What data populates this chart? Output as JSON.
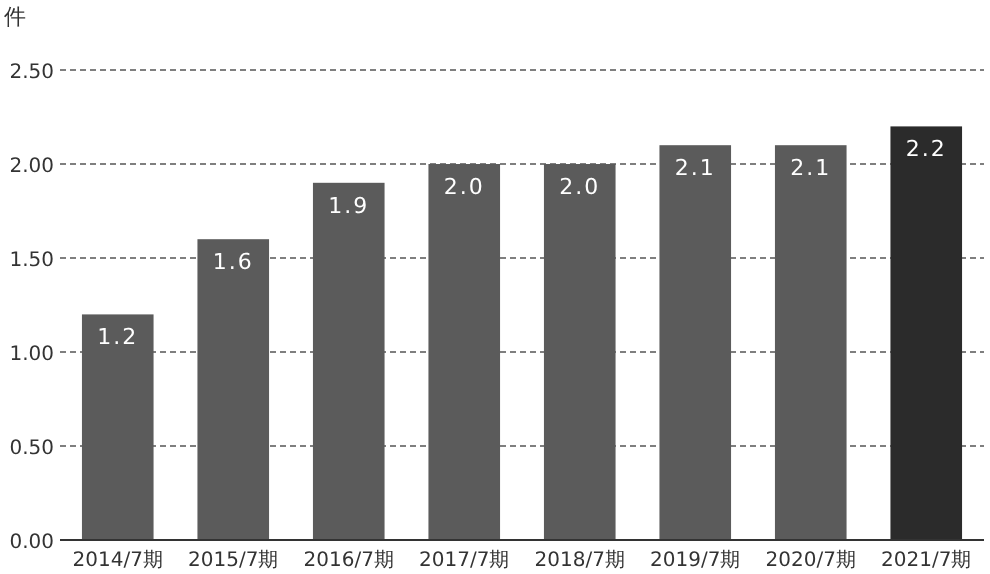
{
  "chart_data": {
    "type": "bar",
    "ylabel": "件",
    "categories": [
      "2014/7期",
      "2015/7期",
      "2016/7期",
      "2017/7期",
      "2018/7期",
      "2019/7期",
      "2020/7期",
      "2021/7期"
    ],
    "values": [
      1.2,
      1.6,
      1.9,
      2.0,
      2.0,
      2.1,
      2.1,
      2.2
    ],
    "colors": [
      "#5b5b5b",
      "#5b5b5b",
      "#5b5b5b",
      "#5b5b5b",
      "#5b5b5b",
      "#5b5b5b",
      "#5b5b5b",
      "#2b2b2b"
    ],
    "value_labels": [
      "1.2",
      "1.6",
      "1.9",
      "2.0",
      "2.0",
      "2.1",
      "2.1",
      "2.2"
    ],
    "ylim": [
      0,
      2.5
    ],
    "yticks": [
      {
        "value": 0,
        "label": "0.00"
      },
      {
        "value": 0.5,
        "label": "0.50"
      },
      {
        "value": 1,
        "label": "1.00"
      },
      {
        "value": 1.5,
        "label": "1.50"
      },
      {
        "value": 2,
        "label": "2.00"
      },
      {
        "value": 2.5,
        "label": "2.50"
      }
    ],
    "grid": "y"
  }
}
